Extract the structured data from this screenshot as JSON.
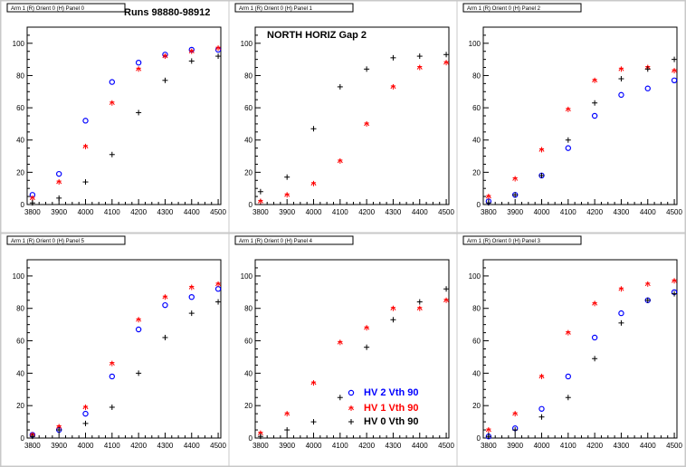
{
  "header": {
    "runs": "Runs 98880-98912",
    "subtitle": "NORTH HORIZ Gap 2"
  },
  "legend": [
    {
      "label": "HV 2 Vth 90",
      "color": "#0000ff",
      "marker": "circle"
    },
    {
      "label": "HV 1 Vth 90",
      "color": "#ff0000",
      "marker": "star"
    },
    {
      "label": "HV 0 Vth 90",
      "color": "#000000",
      "marker": "cross"
    }
  ],
  "chart_data": [
    {
      "type": "scatter",
      "title": "Arm 1 (R) Orient 0 (H) Panel 0",
      "x": [
        3800,
        3900,
        4000,
        4100,
        4200,
        4300,
        4400,
        4500
      ],
      "xlim": [
        3780,
        4510
      ],
      "ylim": [
        0,
        110
      ],
      "xticks": [
        3800,
        3900,
        4000,
        4100,
        4200,
        4300,
        4400,
        4500
      ],
      "yticks": [
        0,
        20,
        40,
        60,
        80,
        100
      ],
      "series": [
        {
          "name": "HV 2 Vth 90",
          "color": "#0000ff",
          "marker": "circle",
          "values": [
            6,
            19,
            52,
            76,
            88,
            93,
            96,
            96
          ]
        },
        {
          "name": "HV 1 Vth 90",
          "color": "#ff0000",
          "marker": "star",
          "values": [
            4,
            14,
            36,
            63,
            84,
            92,
            95,
            97
          ]
        },
        {
          "name": "HV 0 Vth 90",
          "color": "#000000",
          "marker": "cross",
          "values": [
            1,
            4,
            14,
            31,
            57,
            77,
            89,
            92
          ]
        }
      ]
    },
    {
      "type": "scatter",
      "title": "Arm 1 (R) Orient 0 (H) Panel 1",
      "x": [
        3800,
        3900,
        4000,
        4100,
        4200,
        4300,
        4400,
        4500
      ],
      "xlim": [
        3780,
        4510
      ],
      "ylim": [
        0,
        110
      ],
      "xticks": [
        3800,
        3900,
        4000,
        4100,
        4200,
        4300,
        4400,
        4500
      ],
      "yticks": [
        0,
        20,
        40,
        60,
        80,
        100
      ],
      "series": [
        {
          "name": "HV 2 Vth 90",
          "color": "#0000ff",
          "marker": "circle",
          "values": []
        },
        {
          "name": "HV 1 Vth 90",
          "color": "#ff0000",
          "marker": "star",
          "values": [
            2,
            6,
            13,
            27,
            50,
            73,
            85,
            88
          ]
        },
        {
          "name": "HV 0 Vth 90",
          "color": "#000000",
          "marker": "cross",
          "values": [
            8,
            17,
            47,
            73,
            84,
            91,
            92,
            93
          ]
        }
      ]
    },
    {
      "type": "scatter",
      "title": "Arm 1 (R) Orient 0 (H) Panel 2",
      "x": [
        3800,
        3900,
        4000,
        4100,
        4200,
        4300,
        4400,
        4500
      ],
      "xlim": [
        3780,
        4510
      ],
      "ylim": [
        0,
        110
      ],
      "xticks": [
        3800,
        3900,
        4000,
        4100,
        4200,
        4300,
        4400,
        4500
      ],
      "yticks": [
        0,
        20,
        40,
        60,
        80,
        100
      ],
      "series": [
        {
          "name": "HV 2 Vth 90",
          "color": "#0000ff",
          "marker": "circle",
          "values": [
            2,
            6,
            18,
            35,
            55,
            68,
            72,
            77
          ]
        },
        {
          "name": "HV 1 Vth 90",
          "color": "#ff0000",
          "marker": "star",
          "values": [
            5,
            16,
            34,
            59,
            77,
            84,
            85,
            83
          ]
        },
        {
          "name": "HV 0 Vth 90",
          "color": "#000000",
          "marker": "cross",
          "values": [
            1,
            6,
            18,
            40,
            63,
            78,
            84,
            90
          ]
        }
      ]
    },
    {
      "type": "scatter",
      "title": "Arm 1 (R) Orient 0 (H) Panel 5",
      "x": [
        3800,
        3900,
        4000,
        4100,
        4200,
        4300,
        4400,
        4500
      ],
      "xlim": [
        3780,
        4510
      ],
      "ylim": [
        0,
        110
      ],
      "xticks": [
        3800,
        3900,
        4000,
        4100,
        4200,
        4300,
        4400,
        4500
      ],
      "yticks": [
        0,
        20,
        40,
        60,
        80,
        100
      ],
      "series": [
        {
          "name": "HV 2 Vth 90",
          "color": "#0000ff",
          "marker": "circle",
          "values": [
            2,
            5,
            15,
            38,
            67,
            82,
            87,
            92
          ]
        },
        {
          "name": "HV 1 Vth 90",
          "color": "#ff0000",
          "marker": "star",
          "values": [
            2,
            7,
            19,
            46,
            73,
            87,
            93,
            95
          ]
        },
        {
          "name": "HV 0 Vth 90",
          "color": "#000000",
          "marker": "cross",
          "values": [
            1,
            5,
            9,
            19,
            40,
            62,
            77,
            84
          ]
        }
      ]
    },
    {
      "type": "scatter",
      "title": "Arm 1 (R) Orient 0 (H) Panel 4",
      "x": [
        3800,
        3900,
        4000,
        4100,
        4200,
        4300,
        4400,
        4500
      ],
      "xlim": [
        3780,
        4510
      ],
      "ylim": [
        0,
        110
      ],
      "xticks": [
        3800,
        3900,
        4000,
        4100,
        4200,
        4300,
        4400,
        4500
      ],
      "yticks": [
        0,
        20,
        40,
        60,
        80,
        100
      ],
      "series": [
        {
          "name": "HV 2 Vth 90",
          "color": "#0000ff",
          "marker": "circle",
          "values": []
        },
        {
          "name": "HV 1 Vth 90",
          "color": "#ff0000",
          "marker": "star",
          "values": [
            3,
            15,
            34,
            59,
            68,
            80,
            80,
            85
          ]
        },
        {
          "name": "HV 0 Vth 90",
          "color": "#000000",
          "marker": "cross",
          "values": [
            1,
            5,
            10,
            25,
            56,
            73,
            84,
            92
          ]
        }
      ]
    },
    {
      "type": "scatter",
      "title": "Arm 1 (R) Orient 0 (H) Panel 3",
      "x": [
        3800,
        3900,
        4000,
        4100,
        4200,
        4300,
        4400,
        4500
      ],
      "xlim": [
        3780,
        4510
      ],
      "ylim": [
        0,
        110
      ],
      "xticks": [
        3800,
        3900,
        4000,
        4100,
        4200,
        4300,
        4400,
        4500
      ],
      "yticks": [
        0,
        20,
        40,
        60,
        80,
        100
      ],
      "series": [
        {
          "name": "HV 2 Vth 90",
          "color": "#0000ff",
          "marker": "circle",
          "values": [
            1,
            6,
            18,
            38,
            62,
            77,
            85,
            90
          ]
        },
        {
          "name": "HV 1 Vth 90",
          "color": "#ff0000",
          "marker": "star",
          "values": [
            5,
            15,
            38,
            65,
            83,
            92,
            95,
            97
          ]
        },
        {
          "name": "HV 0 Vth 90",
          "color": "#000000",
          "marker": "cross",
          "values": [
            1,
            5,
            13,
            25,
            49,
            71,
            85,
            89
          ]
        }
      ]
    }
  ]
}
